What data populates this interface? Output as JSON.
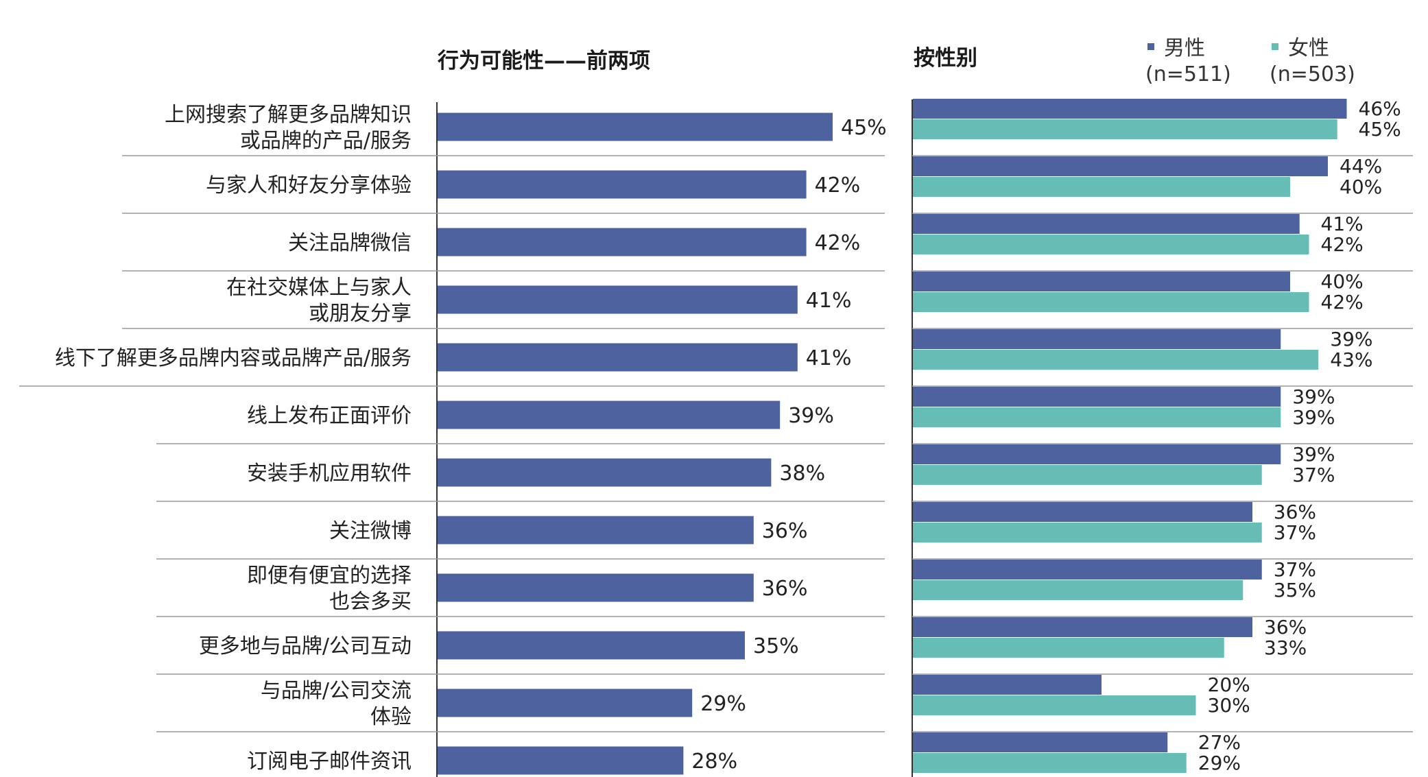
{
  "chart_data": [
    {
      "type": "bar",
      "orientation": "horizontal",
      "title": "行为可能性——前两项",
      "categories": [
        [
          "上网搜索了解更多品牌知识",
          "或品牌的产品/服务"
        ],
        [
          "与家人和好友分享体验"
        ],
        [
          "关注品牌微信"
        ],
        [
          "在社交媒体上与家人",
          "或朋友分享"
        ],
        [
          "线下了解更多品牌内容或品牌产品/服务"
        ],
        [
          "线上发布正面评价"
        ],
        [
          "安装手机应用软件"
        ],
        [
          "关注微博"
        ],
        [
          "即便有便宜的选择",
          "也会多买"
        ],
        [
          "更多地与品牌/公司互动"
        ],
        [
          "与品牌/公司交流",
          "体验"
        ],
        [
          "订阅电子邮件资讯"
        ]
      ],
      "values": [
        45,
        42,
        42,
        41,
        41,
        39,
        38,
        36,
        36,
        35,
        29,
        28
      ],
      "value_labels": [
        "45%",
        "42%",
        "42%",
        "41%",
        "41%",
        "39%",
        "38%",
        "36%",
        "36%",
        "35%",
        "29%",
        "28%"
      ],
      "xlim": [
        0,
        50
      ],
      "color": "#4f62a0",
      "grid": false
    },
    {
      "type": "bar",
      "orientation": "horizontal",
      "title": "按性别",
      "legend_position": "top",
      "series": [
        {
          "name": "男性",
          "sample": "(n=511)",
          "color": "#4f62a0",
          "values": [
            46,
            44,
            41,
            40,
            39,
            39,
            39,
            36,
            37,
            36,
            20,
            27
          ],
          "value_labels": [
            "46%",
            "44%",
            "41%",
            "40%",
            "39%",
            "39%",
            "39%",
            "36%",
            "37%",
            "36%",
            "20%",
            "27%"
          ]
        },
        {
          "name": "女性",
          "sample": "(n=503)",
          "color": "#66bdb6",
          "values": [
            45,
            40,
            42,
            42,
            43,
            39,
            37,
            37,
            35,
            33,
            30,
            29
          ],
          "value_labels": [
            "45%",
            "40%",
            "42%",
            "42%",
            "43%",
            "39%",
            "37%",
            "37%",
            "35%",
            "33%",
            "30%",
            "29%"
          ]
        }
      ],
      "xlim": [
        0,
        50
      ],
      "grid": false
    }
  ],
  "colors": {
    "separator": "#9a9a9a",
    "axis": "#333333",
    "text": "#222222"
  }
}
